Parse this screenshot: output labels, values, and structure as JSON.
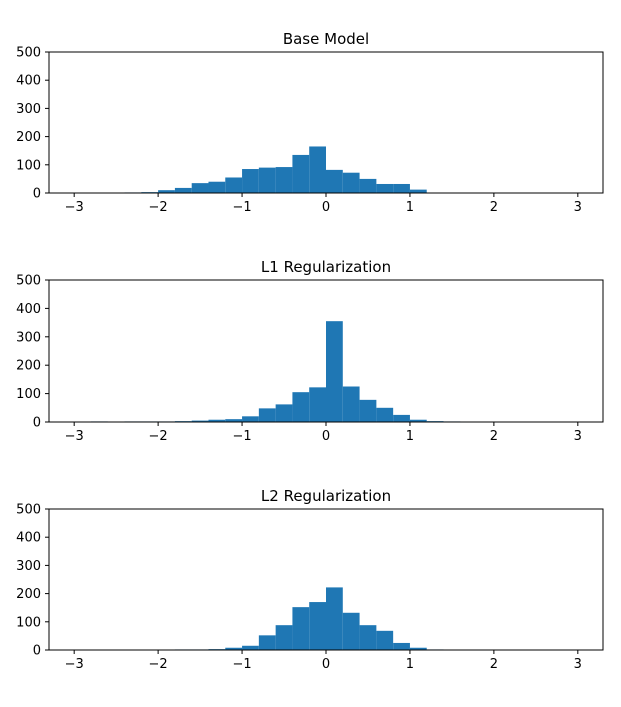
{
  "chart_data": [
    {
      "type": "bar",
      "title": "Base Model",
      "xlim": [
        -3.3,
        3.3
      ],
      "ylim": [
        0,
        500
      ],
      "xticks": [
        -3,
        -2,
        -1,
        0,
        1,
        2,
        3
      ],
      "xtick_labels": [
        "−3",
        "−2",
        "−1",
        "0",
        "1",
        "2",
        "3"
      ],
      "yticks": [
        0,
        100,
        200,
        300,
        400,
        500
      ],
      "ytick_labels": [
        "0",
        "100",
        "200",
        "300",
        "400",
        "500"
      ],
      "bin_width": 0.2,
      "bin_starts": [
        -2.4,
        -2.2,
        -2.0,
        -1.8,
        -1.6,
        -1.4,
        -1.2,
        -1.0,
        -0.8,
        -0.6,
        -0.4,
        -0.2,
        0.0,
        0.2,
        0.4,
        0.6,
        0.8,
        1.0,
        1.2
      ],
      "values": [
        2,
        3,
        10,
        18,
        35,
        40,
        55,
        85,
        90,
        92,
        135,
        165,
        82,
        72,
        50,
        32,
        32,
        12,
        0
      ],
      "color": "#1f77b4",
      "grid": false
    },
    {
      "type": "bar",
      "title": "L1 Regularization",
      "xlim": [
        -3.3,
        3.3
      ],
      "ylim": [
        0,
        500
      ],
      "xticks": [
        -3,
        -2,
        -1,
        0,
        1,
        2,
        3
      ],
      "xtick_labels": [
        "−3",
        "−2",
        "−1",
        "0",
        "1",
        "2",
        "3"
      ],
      "yticks": [
        0,
        100,
        200,
        300,
        400,
        500
      ],
      "ytick_labels": [
        "0",
        "100",
        "200",
        "300",
        "400",
        "500"
      ],
      "bin_width": 0.2,
      "bin_starts": [
        -2.8,
        -2.6,
        -2.4,
        -2.2,
        -2.0,
        -1.8,
        -1.6,
        -1.4,
        -1.2,
        -1.0,
        -0.8,
        -0.6,
        -0.4,
        -0.2,
        0.0,
        0.2,
        0.4,
        0.6,
        0.8,
        1.0,
        1.2,
        1.4
      ],
      "values": [
        2,
        0,
        2,
        2,
        2,
        3,
        5,
        8,
        10,
        20,
        48,
        62,
        105,
        122,
        355,
        125,
        78,
        50,
        25,
        8,
        3,
        2
      ],
      "color": "#1f77b4",
      "grid": false
    },
    {
      "type": "bar",
      "title": "L2 Regularization",
      "xlim": [
        -3.3,
        3.3
      ],
      "ylim": [
        0,
        500
      ],
      "xticks": [
        -3,
        -2,
        -1,
        0,
        1,
        2,
        3
      ],
      "xtick_labels": [
        "−3",
        "−2",
        "−1",
        "0",
        "1",
        "2",
        "3"
      ],
      "yticks": [
        0,
        100,
        200,
        300,
        400,
        500
      ],
      "ytick_labels": [
        "0",
        "100",
        "200",
        "300",
        "400",
        "500"
      ],
      "bin_width": 0.2,
      "bin_starts": [
        -2.0,
        -1.8,
        -1.6,
        -1.4,
        -1.2,
        -1.0,
        -0.8,
        -0.6,
        -0.4,
        -0.2,
        0.0,
        0.2,
        0.4,
        0.6,
        0.8,
        1.0,
        1.2
      ],
      "values": [
        1,
        2,
        2,
        3,
        8,
        15,
        52,
        88,
        152,
        170,
        222,
        132,
        88,
        68,
        25,
        8,
        2
      ],
      "color": "#1f77b4",
      "grid": false
    }
  ]
}
